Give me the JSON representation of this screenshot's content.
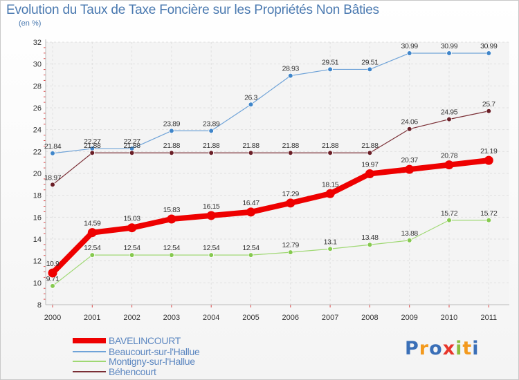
{
  "header": {
    "title": "Evolution du Taux de Taxe Foncière sur les Propriétés Non Bâties",
    "unit": "(en %)"
  },
  "brand": {
    "text": "Proxiti",
    "letter_colors": [
      "#3a6fb7",
      "#f39a1e",
      "#3a6fb7",
      "#e8362b",
      "#8cbd3d",
      "#f39a1e",
      "#3a6fb7"
    ]
  },
  "chart_data": {
    "type": "line",
    "title": "Evolution du Taux de Taxe Foncière sur les Propriétés Non Bâties",
    "ylabel": "(en %)",
    "xlabel": "",
    "x": [
      "2000",
      "2001",
      "2002",
      "2003",
      "2004",
      "2005",
      "2006",
      "2007",
      "2008",
      "2009",
      "2010",
      "2011"
    ],
    "ylim": [
      8,
      32
    ],
    "yticks": [
      8,
      10,
      12,
      14,
      16,
      18,
      20,
      22,
      24,
      26,
      28,
      30,
      32
    ],
    "grid": true,
    "series": [
      {
        "name": "Beaucourt-sur-l'Hallue",
        "color": "#6fa3d8",
        "marker": "#3f85c9",
        "values": [
          21.84,
          22.27,
          22.27,
          23.89,
          23.89,
          26.3,
          28.93,
          29.51,
          29.51,
          30.99,
          30.99,
          30.99
        ],
        "labels": [
          "21.84",
          "22.27",
          "22.27",
          "23.89",
          "23.89",
          "26.3",
          "28.93",
          "29.51",
          "29.51",
          "30.99",
          "30.99",
          "30.99"
        ]
      },
      {
        "name": "Béhencourt",
        "color": "#7a2e35",
        "marker": "#6a1e26",
        "values": [
          18.97,
          21.88,
          21.88,
          21.88,
          21.88,
          21.88,
          21.88,
          21.88,
          21.88,
          24.06,
          24.95,
          25.7
        ],
        "labels": [
          "18.97",
          "21.88",
          "21.88",
          "21.88",
          "21.88",
          "21.88",
          "21.88",
          "21.88",
          "21.88",
          "24.06",
          "24.95",
          "25.7"
        ]
      },
      {
        "name": "Montigny-sur-l'Hallue",
        "color": "#9fd873",
        "marker": "#86c94f",
        "values": [
          9.71,
          12.54,
          12.54,
          12.54,
          12.54,
          12.54,
          12.79,
          13.1,
          13.48,
          13.88,
          15.72,
          15.72
        ],
        "labels": [
          "9.71",
          "12.54",
          "12.54",
          "12.54",
          "12.54",
          "12.54",
          "12.79",
          "13.1",
          "13.48",
          "13.88",
          "15.72",
          "15.72"
        ]
      },
      {
        "name": "BAVELINCOURT",
        "color": "#ee0000",
        "marker": "#ee0000",
        "values": [
          10.9,
          14.59,
          15.03,
          15.83,
          16.15,
          16.47,
          17.29,
          18.15,
          19.97,
          20.37,
          20.78,
          21.19
        ],
        "labels": [
          "10.9",
          "14.59",
          "15.03",
          "15.83",
          "16.15",
          "16.47",
          "17.29",
          "18.15",
          "19.97",
          "20.37",
          "20.78",
          "21.19"
        ]
      }
    ],
    "legend": {
      "placement": "bottom-left",
      "entries": [
        "BAVELINCOURT",
        "Beaucourt-sur-l'Hallue",
        "Montigny-sur-l'Hallue",
        "Béhencourt"
      ]
    }
  }
}
